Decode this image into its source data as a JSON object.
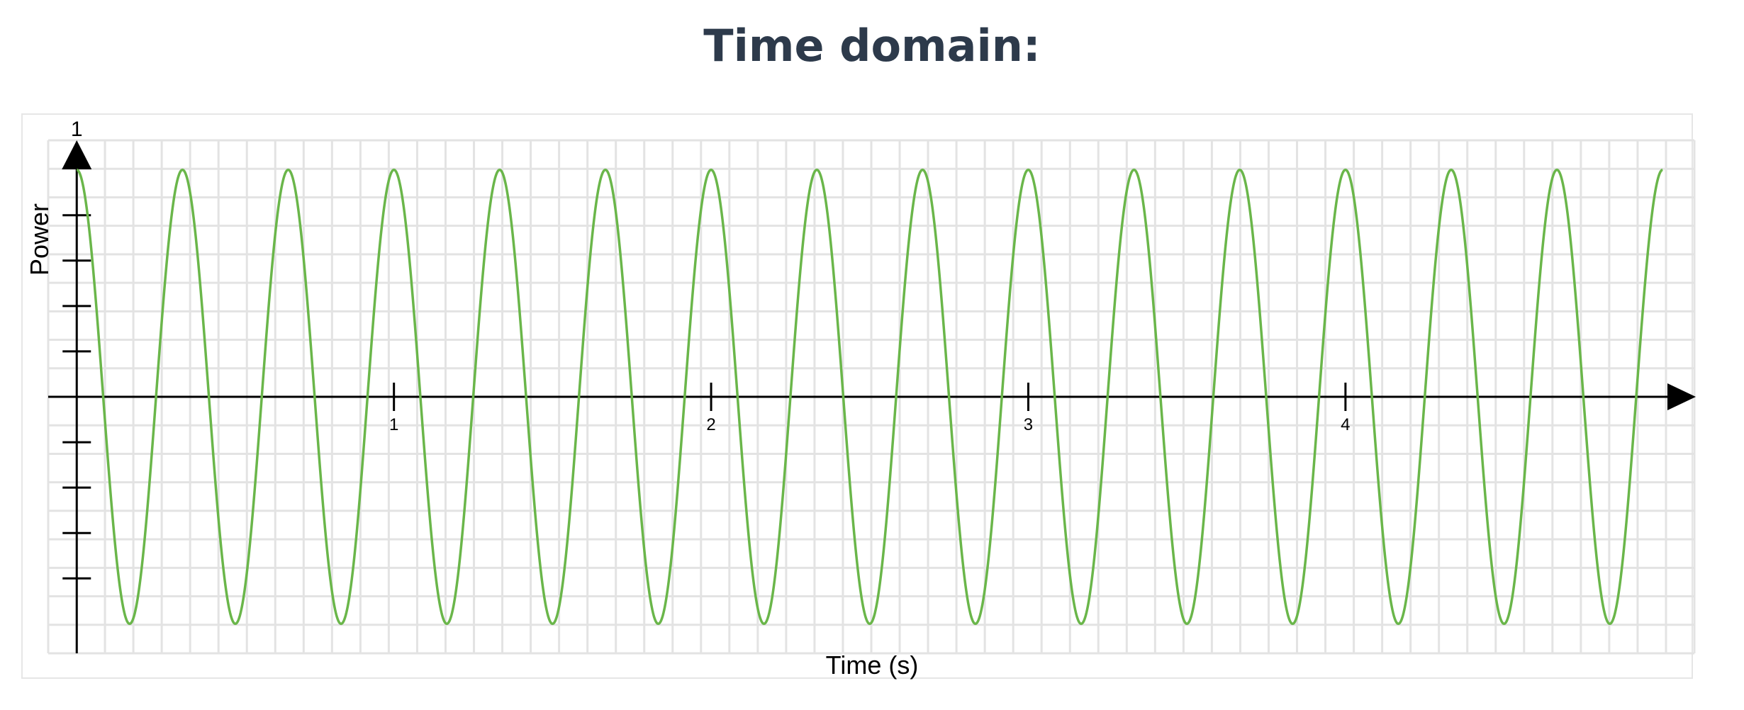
{
  "page": {
    "title": "Time domain:"
  },
  "chart_data": {
    "type": "line",
    "title": "",
    "xlabel": "Time (s)",
    "ylabel": "Power",
    "xlim": [
      -0.09,
      5.1
    ],
    "ylim": [
      -1.13,
      1.13
    ],
    "x_ticks": [
      1,
      2,
      3,
      4
    ],
    "x_tick_labels": [
      "1",
      "2",
      "3",
      "4"
    ],
    "y_ticks": [
      -0.8,
      -0.6,
      -0.4,
      -0.2,
      0.2,
      0.4,
      0.6,
      0.8
    ],
    "y_top_label": "1",
    "grid": true,
    "series": [
      {
        "color": "#6ab64a",
        "function": "cos",
        "amplitude": 1,
        "frequency_hz": 3,
        "x_range": [
          0,
          5
        ]
      }
    ]
  }
}
